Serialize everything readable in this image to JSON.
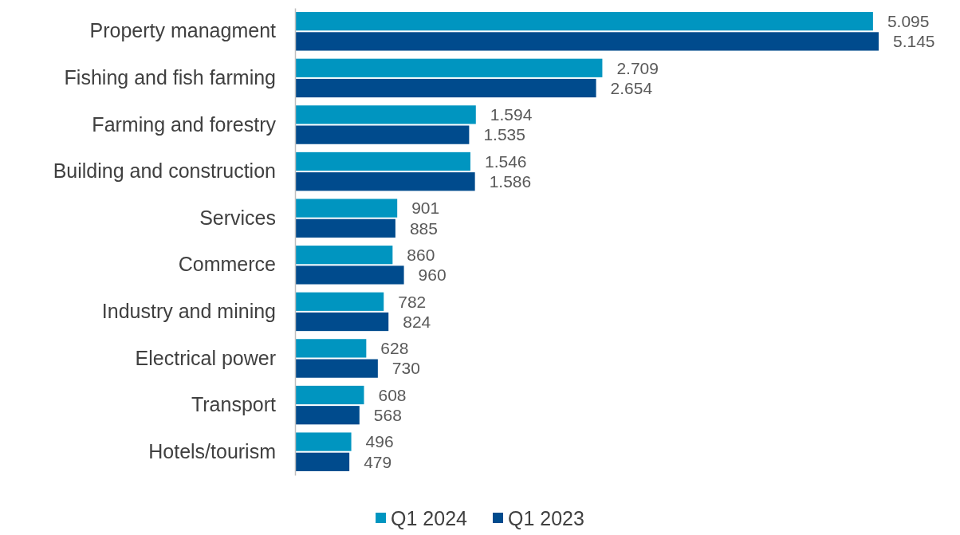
{
  "chart_data": {
    "type": "bar",
    "orientation": "horizontal",
    "legend": "bottom",
    "categories": [
      "Property managment",
      "Fishing and fish farming",
      "Farming and forestry",
      "Building and construction",
      "Services",
      "Commerce",
      "Industry and mining",
      "Electrical power",
      "Transport",
      "Hotels/tourism"
    ],
    "series": [
      {
        "name": "Q1 2024",
        "color": "#0095c0",
        "values": [
          5095,
          2709,
          1594,
          1546,
          901,
          860,
          782,
          628,
          608,
          496
        ],
        "value_labels": [
          "5.095",
          "2.709",
          "1.594",
          "1.546",
          "901",
          "860",
          "782",
          "628",
          "608",
          "496"
        ]
      },
      {
        "name": "Q1 2023",
        "color": "#004b8d",
        "values": [
          5145,
          2654,
          1535,
          1586,
          885,
          960,
          824,
          730,
          568,
          479
        ],
        "value_labels": [
          "5.145",
          "2.654",
          "1.535",
          "1.586",
          "885",
          "960",
          "824",
          "730",
          "568",
          "479"
        ]
      }
    ]
  }
}
